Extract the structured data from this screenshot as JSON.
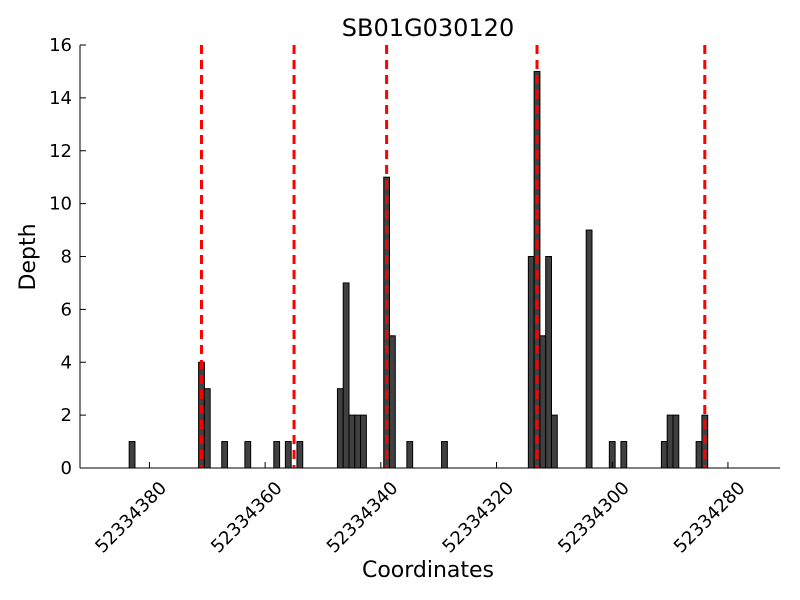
{
  "chart_data": {
    "type": "bar",
    "title": "SB01G030120",
    "xlabel": "Coordinates",
    "ylabel": "Depth",
    "x_reversed": true,
    "xlim": [
      52334392,
      52334271
    ],
    "ylim": [
      0,
      16
    ],
    "xticks": [
      52334380,
      52334360,
      52334340,
      52334320,
      52334300,
      52334280
    ],
    "yticks": [
      0,
      2,
      4,
      6,
      8,
      10,
      12,
      14,
      16
    ],
    "bar_width": 1,
    "bar_color": "#404040",
    "bar_edge_color": "#000000",
    "grid": false,
    "bars": [
      {
        "x": 52334383,
        "y": 1
      },
      {
        "x": 52334371,
        "y": 4
      },
      {
        "x": 52334370,
        "y": 3
      },
      {
        "x": 52334367,
        "y": 1
      },
      {
        "x": 52334363,
        "y": 1
      },
      {
        "x": 52334358,
        "y": 1
      },
      {
        "x": 52334356,
        "y": 1
      },
      {
        "x": 52334354,
        "y": 1
      },
      {
        "x": 52334347,
        "y": 3
      },
      {
        "x": 52334346,
        "y": 7
      },
      {
        "x": 52334345,
        "y": 2
      },
      {
        "x": 52334344,
        "y": 2
      },
      {
        "x": 52334343,
        "y": 2
      },
      {
        "x": 52334339,
        "y": 11
      },
      {
        "x": 52334338,
        "y": 5
      },
      {
        "x": 52334335,
        "y": 1
      },
      {
        "x": 52334329,
        "y": 1
      },
      {
        "x": 52334314,
        "y": 8
      },
      {
        "x": 52334313,
        "y": 15
      },
      {
        "x": 52334312,
        "y": 5
      },
      {
        "x": 52334311,
        "y": 8
      },
      {
        "x": 52334310,
        "y": 2
      },
      {
        "x": 52334304,
        "y": 9
      },
      {
        "x": 52334300,
        "y": 1
      },
      {
        "x": 52334298,
        "y": 1
      },
      {
        "x": 52334291,
        "y": 1
      },
      {
        "x": 52334290,
        "y": 2
      },
      {
        "x": 52334289,
        "y": 2
      },
      {
        "x": 52334285,
        "y": 1
      },
      {
        "x": 52334284,
        "y": 2
      }
    ],
    "markers": {
      "color": "#ff0000",
      "style": "dashed",
      "x": [
        52334371,
        52334355,
        52334339,
        52334313,
        52334284
      ]
    }
  }
}
